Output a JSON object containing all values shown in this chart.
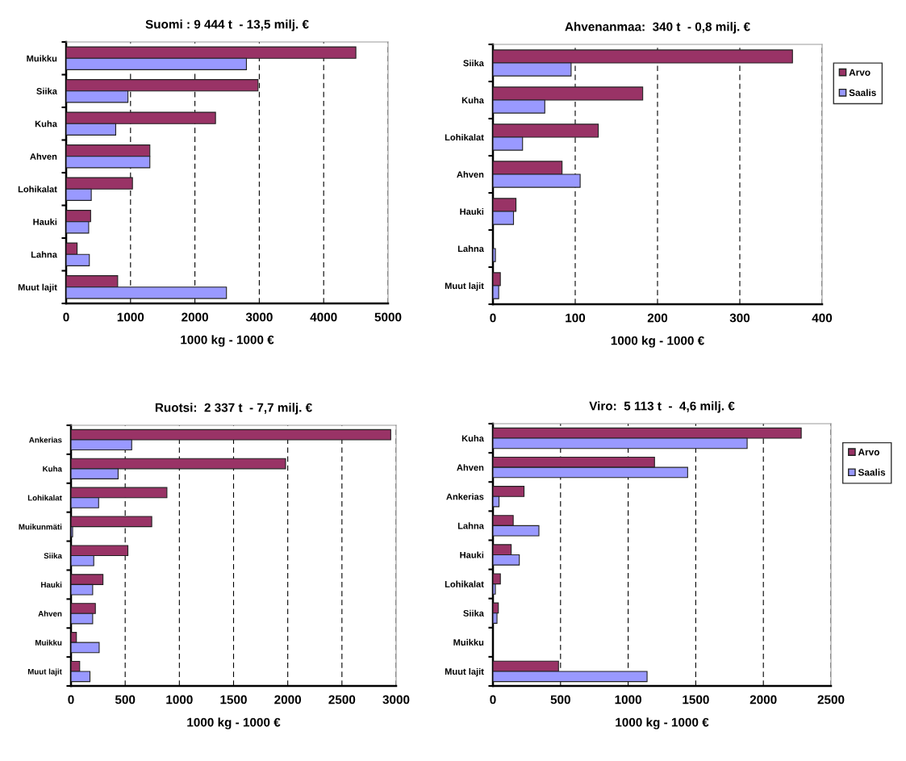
{
  "chart_data": [
    {
      "type": "bar",
      "orientation": "horizontal",
      "title": "Suomi : 9 444 t  - 13,5 milj. €",
      "xlabel": "1000 kg - 1000 €",
      "categories": [
        "Muikku",
        "Siika",
        "Kuha",
        "Ahven",
        "Lohikalat",
        "Hauki",
        "Lahna",
        "Muut lajit"
      ],
      "series": [
        {
          "color": "#993366",
          "values": [
            4500,
            2980,
            2320,
            1300,
            1030,
            380,
            170,
            800
          ]
        },
        {
          "color": "#9999ff",
          "values": [
            2800,
            960,
            770,
            1300,
            390,
            350,
            360,
            2490
          ]
        }
      ],
      "xlim": [
        0,
        5000
      ],
      "xticks": [
        0,
        1000,
        2000,
        3000,
        4000,
        5000
      ],
      "grid": "x",
      "legend": false
    },
    {
      "type": "bar",
      "orientation": "horizontal",
      "title": "Ahvenanmaa:  340 t  - 0,8 milj. €",
      "xlabel": "1000 kg - 1000 €",
      "categories": [
        "Siika",
        "Kuha",
        "Lohikalat",
        "Ahven",
        "Hauki",
        "Lahna",
        "Muut lajit"
      ],
      "series": [
        {
          "name": "Arvo",
          "color": "#993366",
          "values": [
            364,
            182,
            128,
            84,
            28,
            null,
            9
          ]
        },
        {
          "name": "Saalis",
          "color": "#9999ff",
          "values": [
            95,
            63,
            36,
            106,
            25,
            3,
            7
          ]
        }
      ],
      "xlim": [
        0,
        400
      ],
      "xticks": [
        0,
        100,
        200,
        300,
        400
      ],
      "grid": "x",
      "legend": "right"
    },
    {
      "type": "bar",
      "orientation": "horizontal",
      "title": "Ruotsi:  2 337 t  - 7,7 milj. €",
      "xlabel": "1000 kg - 1000 €",
      "categories": [
        "Ankerias",
        "Kuha",
        "Lohikalat",
        "Muikunmäti",
        "Siika",
        "Hauki",
        "Ahven",
        "Muikku",
        "Muut lajit"
      ],
      "series": [
        {
          "color": "#993366",
          "values": [
            2950,
            1980,
            885,
            745,
            525,
            295,
            225,
            50,
            80
          ]
        },
        {
          "color": "#9999ff",
          "values": [
            560,
            435,
            255,
            15,
            210,
            200,
            200,
            260,
            175
          ]
        }
      ],
      "xlim": [
        0,
        3000
      ],
      "xticks": [
        0,
        500,
        1000,
        1500,
        2000,
        2500,
        3000
      ],
      "grid": "x",
      "legend": false
    },
    {
      "type": "bar",
      "orientation": "horizontal",
      "title": "Viro:  5 113 t  -  4,6 milj. €",
      "xlabel": "1000 kg - 1000 €",
      "categories": [
        "Kuha",
        "Ahven",
        "Ankerias",
        "Lahna",
        "Hauki",
        "Lohikalat",
        "Siika",
        "Muikku",
        "Muut lajit"
      ],
      "series": [
        {
          "name": "Arvo",
          "color": "#993366",
          "values": [
            2280,
            1195,
            230,
            150,
            135,
            55,
            40,
            null,
            485
          ]
        },
        {
          "name": "Saalis",
          "color": "#9999ff",
          "values": [
            1880,
            1440,
            45,
            340,
            195,
            18,
            30,
            null,
            1140
          ]
        }
      ],
      "xlim": [
        0,
        2500
      ],
      "xticks": [
        0,
        500,
        1000,
        1500,
        2000,
        2500
      ],
      "grid": "x",
      "legend": "right"
    }
  ]
}
